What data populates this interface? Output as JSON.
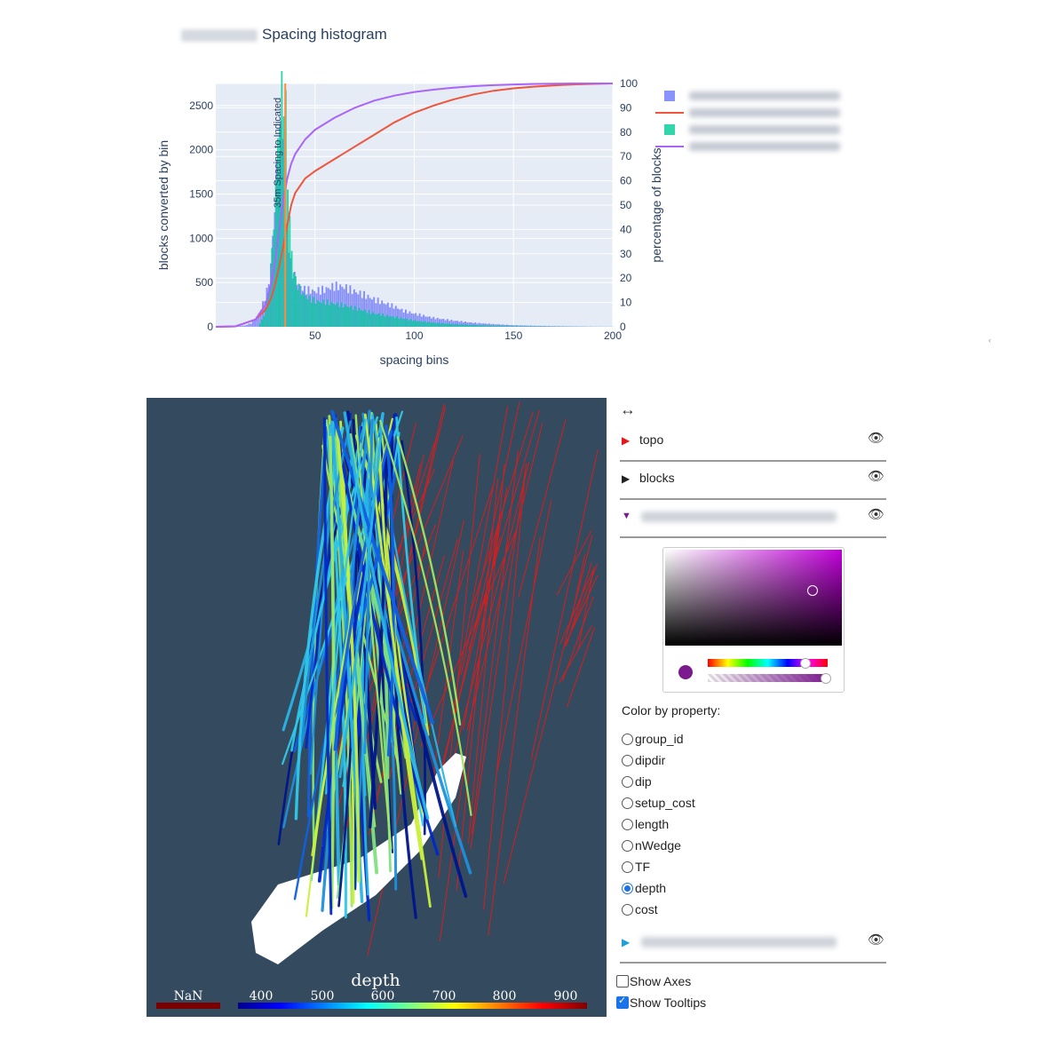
{
  "histogram": {
    "title": "Spacing histogram",
    "chart_data": {
      "type": "bar",
      "xlabel": "spacing bins",
      "ylabel": "blocks converted by bin",
      "y2label": "percentage of blocks",
      "xlim": [
        0,
        200
      ],
      "ylim": [
        0,
        2750
      ],
      "y2lim": [
        0,
        100
      ],
      "xticks": [
        50,
        100,
        150,
        200
      ],
      "yticks": [
        0,
        500,
        1000,
        1500,
        2000,
        2500
      ],
      "y2ticks": [
        0,
        10,
        20,
        30,
        40,
        50,
        60,
        70,
        80,
        90,
        100
      ],
      "annotation": {
        "text": "35m Spacing to Indicated",
        "x": 35
      },
      "grid": true,
      "legend_position": "right",
      "series": [
        {
          "kind": "bar",
          "color": "#636efa",
          "x": [
            5,
            10,
            15,
            18,
            20,
            22,
            24,
            26,
            27,
            28,
            29,
            30,
            31,
            32,
            33,
            34,
            35,
            36,
            37,
            38,
            39,
            40,
            42,
            45,
            50,
            55,
            60,
            65,
            70,
            75,
            80,
            85,
            90,
            95,
            100,
            110,
            120,
            130,
            140,
            150,
            160,
            170,
            180,
            190,
            200
          ],
          "y": [
            0,
            5,
            15,
            40,
            80,
            150,
            260,
            400,
            520,
            700,
            1000,
            1400,
            1700,
            1900,
            2100,
            2300,
            1500,
            1100,
            900,
            700,
            620,
            560,
            470,
            420,
            400,
            420,
            460,
            450,
            400,
            360,
            310,
            270,
            230,
            180,
            150,
            100,
            70,
            45,
            30,
            18,
            12,
            8,
            5,
            3,
            2
          ]
        },
        {
          "kind": "line",
          "color": "#ef553b",
          "x": [
            0,
            10,
            20,
            25,
            28,
            30,
            32,
            34,
            36,
            38,
            40,
            45,
            50,
            60,
            70,
            80,
            90,
            100,
            110,
            120,
            130,
            140,
            150,
            160,
            170,
            180,
            190,
            200
          ],
          "y": [
            0,
            0.2,
            3,
            7,
            12,
            18,
            25,
            33,
            42,
            50,
            55,
            61,
            64,
            69,
            74,
            79,
            84,
            88,
            91,
            93.5,
            95.5,
            97,
            98,
            98.7,
            99.2,
            99.6,
            99.8,
            100
          ]
        },
        {
          "kind": "bar",
          "color": "#00cc96",
          "x": [
            22,
            24,
            26,
            27,
            28,
            29,
            30,
            31,
            32,
            33,
            34,
            35,
            36,
            37,
            38,
            39,
            40,
            42,
            44,
            46,
            48,
            50,
            55,
            60,
            65,
            70,
            75,
            80,
            85,
            90,
            95,
            100,
            110,
            120,
            130,
            140,
            150,
            160,
            170,
            180,
            190,
            200
          ],
          "y": [
            40,
            120,
            300,
            500,
            800,
            1200,
            1600,
            2100,
            2400,
            2650,
            2700,
            2400,
            1700,
            1200,
            850,
            650,
            520,
            430,
            370,
            330,
            310,
            290,
            280,
            260,
            240,
            210,
            180,
            150,
            130,
            110,
            90,
            70,
            45,
            30,
            20,
            12,
            8,
            5,
            3,
            2,
            1,
            1
          ]
        },
        {
          "kind": "line",
          "color": "#ab63fa",
          "x": [
            0,
            10,
            20,
            25,
            28,
            30,
            32,
            34,
            36,
            38,
            40,
            45,
            50,
            60,
            70,
            80,
            90,
            100,
            110,
            120,
            130,
            140,
            150,
            160,
            170,
            180,
            190,
            200
          ],
          "y": [
            0,
            0.2,
            3,
            9,
            18,
            28,
            40,
            52,
            61,
            67,
            71,
            77,
            81,
            86,
            90,
            93,
            95,
            96.5,
            97.5,
            98.3,
            98.9,
            99.3,
            99.6,
            99.8,
            99.9,
            100,
            100,
            100
          ]
        }
      ]
    }
  },
  "scene": {
    "colorbar_title": "depth",
    "nan_label": "NaN",
    "ticks": [
      "400",
      "500",
      "600",
      "700",
      "800",
      "900"
    ]
  },
  "panel": {
    "move_icon": "↔",
    "layers": [
      {
        "name": "topo",
        "tri": "▶",
        "tri_color": "#e8161b"
      },
      {
        "name": "blocks",
        "tri": "▶",
        "tri_color": "#222222"
      },
      {
        "name": "",
        "tri": "▼",
        "tri_color": "#7a1a8e"
      }
    ],
    "layer_bottom": {
      "name": "",
      "tri": "▶",
      "tri_color": "#1fa0d8"
    },
    "eye_icon": "👁",
    "color_by_title": "Color by property:",
    "properties": [
      "group_id",
      "dipdir",
      "dip",
      "setup_cost",
      "length",
      "nWedge",
      "TF",
      "depth",
      "cost"
    ],
    "selected_property": "depth",
    "show_axes_label": "Show Axes",
    "show_tooltips_label": "Show Tooltips",
    "show_axes": false,
    "show_tooltips": true
  },
  "colors": {
    "scene_bg": "#344a5e",
    "topo_red": "#d21f1f",
    "picker_color": "#7a1a8e"
  }
}
